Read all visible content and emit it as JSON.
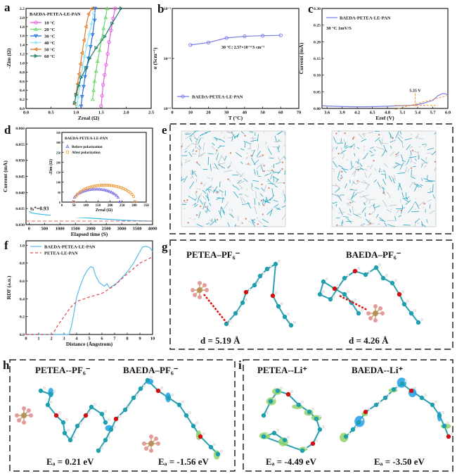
{
  "panels": {
    "a": "a",
    "b": "b",
    "c": "c",
    "d": "d",
    "e": "e",
    "f": "f",
    "g": "g",
    "h": "h",
    "i": "i"
  },
  "panel_g": {
    "left_title": "PETEA–PF₆⁻",
    "right_title": "BAEDA–PF₆⁻",
    "left_distance": "d = 5.19 Å",
    "right_distance": "d = 4.26 Å"
  },
  "panel_h": {
    "left_title": "PETEA--PF₆⁻",
    "right_title": "BAEDA–PF₆⁻",
    "left_energy": "Eₐ = 0.21 eV",
    "right_energy": "Eₐ = -1.56 eV"
  },
  "panel_i": {
    "left_title": "PETEA--Li⁺",
    "right_title": "BAEDA--Li⁺",
    "left_energy": "Eₐ = -4.49 eV",
    "right_energy": "Eₐ = -3.50 eV"
  },
  "colors": {
    "cyan": "#1aa3b8",
    "green": "#86d36a",
    "blue": "#1e8fe0",
    "oxygen": "#d01010",
    "phos": "#b8915a",
    "fluor": "#e59a9a"
  },
  "chart_data": [
    {
      "panel": "a",
      "type": "line",
      "xlabel": "Zreal (Ω)",
      "ylabel": "-Zim (Ω)",
      "xlim": [
        0,
        2.5
      ],
      "ylim": [
        0,
        2.2
      ],
      "xticks": [
        "0.0",
        "0.5",
        "1.0",
        "1.5",
        "2.0",
        "2.5"
      ],
      "yticks": [
        "0.0",
        "0.2",
        "0.4",
        "0.6",
        "0.8",
        "1.0",
        "1.2",
        "1.4",
        "1.6",
        "1.8",
        "2.0",
        "2.2"
      ],
      "legend_title": "BAEDA-PETEA-LE-PAN",
      "series": [
        {
          "name": "10 °C",
          "color": "#e060e0",
          "marker": "circle",
          "x": [
            1.5,
            1.52,
            1.54,
            1.57,
            1.6,
            1.63,
            1.66,
            1.7,
            1.74,
            1.78
          ],
          "y": [
            0.05,
            0.28,
            0.52,
            0.74,
            0.96,
            1.2,
            1.46,
            1.72,
            1.98,
            2.2
          ]
        },
        {
          "name": "20 °C",
          "color": "#6cd66c",
          "marker": "triangle",
          "x": [
            1.33,
            1.35,
            1.37,
            1.4,
            1.43,
            1.47,
            1.51,
            1.55,
            1.59,
            1.62
          ],
          "y": [
            0.2,
            0.4,
            0.6,
            0.82,
            1.04,
            1.28,
            1.52,
            1.76,
            2.0,
            2.2
          ]
        },
        {
          "name": "30 °C",
          "color": "#1e6fe0",
          "marker": "tri-down",
          "x": [
            1.1,
            1.12,
            1.15,
            1.18,
            1.21,
            1.25,
            1.29,
            1.33,
            1.37,
            1.38
          ],
          "y": [
            0.05,
            0.26,
            0.48,
            0.7,
            0.9,
            1.1,
            1.36,
            1.62,
            1.94,
            2.2
          ]
        },
        {
          "name": "40 °C",
          "color": "#8fe6f0",
          "marker": "diamond",
          "x": [
            1.02,
            1.04,
            1.07,
            1.1,
            1.13,
            1.17,
            1.21,
            1.26,
            1.31,
            1.35
          ],
          "y": [
            0.05,
            0.25,
            0.48,
            0.7,
            0.92,
            1.14,
            1.38,
            1.62,
            1.86,
            2.1
          ]
        },
        {
          "name": "50 °C",
          "color": "#e47a2a",
          "marker": "tri-left",
          "x": [
            0.97,
            1.0,
            1.03,
            1.06,
            1.09,
            1.12,
            1.16,
            1.2,
            1.25,
            1.32
          ],
          "y": [
            0.1,
            0.32,
            0.54,
            0.76,
            0.98,
            1.22,
            1.5,
            1.8,
            2.08,
            2.2
          ]
        },
        {
          "name": "60 °C",
          "color": "#1f7a6a",
          "marker": "tri-right",
          "x": [
            0.97,
            1.0,
            1.05,
            1.1,
            1.2,
            1.27,
            1.4,
            1.57,
            1.72,
            1.9
          ],
          "y": [
            0.12,
            0.3,
            0.5,
            0.68,
            0.88,
            1.1,
            1.33,
            1.58,
            1.87,
            2.2
          ]
        }
      ]
    },
    {
      "panel": "b",
      "type": "line",
      "xlabel": "T (°C)",
      "ylabel": "σ (Scm⁻¹)",
      "xlim": [
        0,
        70
      ],
      "ylim": [
        1e-05,
        0.001
      ],
      "yscale": "log",
      "xticks": [
        "0",
        "10",
        "20",
        "30",
        "40",
        "50",
        "60",
        "70"
      ],
      "yticks": [
        "10⁻⁵",
        "10⁻⁴",
        "10⁻³"
      ],
      "annotation": "30 °C: 2.57×10⁻⁴ S cm⁻¹",
      "series": [
        {
          "name": "BAEDA-PETEA-LE-PAN",
          "color": "#7b7be8",
          "marker": "circle",
          "x": [
            10,
            20,
            30,
            40,
            50,
            60
          ],
          "y": [
            0.000186,
            0.000208,
            0.000257,
            0.000277,
            0.000285,
            0.00029
          ]
        }
      ]
    },
    {
      "panel": "c",
      "type": "line",
      "xlabel": "Eref (V)",
      "ylabel": "Current (mA)",
      "xlim": [
        3.5,
        6.0
      ],
      "ylim": [
        0,
        0.3
      ],
      "xticks": [
        "3.6",
        "3.9",
        "4.2",
        "4.5",
        "4.8",
        "5.1",
        "5.4",
        "5.7",
        "6.0"
      ],
      "yticks": [
        "0.00",
        "0.05",
        "0.10",
        "0.15",
        "0.20",
        "0.25",
        "0.30"
      ],
      "conditions": "30 °C  1mV/S",
      "annotation": "5.35 V",
      "series": [
        {
          "name": "BAEDA-PETEA-LE-PAN",
          "color": "#7b7be8",
          "x": [
            3.5,
            3.8,
            4.1,
            4.4,
            4.7,
            5.0,
            5.2,
            5.35,
            5.5,
            5.7,
            5.8,
            5.9,
            5.97,
            6.0
          ],
          "y": [
            0.008,
            0.006,
            0.005,
            0.005,
            0.006,
            0.008,
            0.009,
            0.01,
            0.015,
            0.024,
            0.038,
            0.045,
            0.043,
            0.04
          ]
        }
      ]
    },
    {
      "panel": "d",
      "type": "line",
      "xlabel": "Elapsed time (S)",
      "ylabel": "Current (mA)",
      "xlim": [
        -100,
        4000
      ],
      "ylim": [
        0.03,
        0.06
      ],
      "xticks": [
        "0",
        "500",
        "1000",
        "1500",
        "2000",
        "2500",
        "3000",
        "3500",
        "4000"
      ],
      "yticks": [
        "0.030",
        "0.035",
        "0.040",
        "0.045",
        "0.050",
        "0.055",
        "0.060"
      ],
      "annotation": "tₗᵢ⁺=0.93",
      "steady_state": 0.0311,
      "series": [
        {
          "name": "current",
          "color": "#35b8e8",
          "x": [
            0,
            100,
            300,
            600,
            1000,
            1500,
            2000,
            2500,
            3000,
            3500,
            4000
          ],
          "y": [
            0.0341,
            0.0336,
            0.0333,
            0.033,
            0.0327,
            0.0323,
            0.032,
            0.0317,
            0.0314,
            0.0312,
            0.0311
          ]
        }
      ],
      "inset": {
        "legend_title": "BAEDA-PETEA-LE-PAN",
        "xlabel": "Zreal (Ω)",
        "ylabel": "-Zim (Ω)",
        "xlim": [
          0,
          350
        ],
        "ylim": [
          0,
          350
        ],
        "xticks": [
          "0",
          "50",
          "100",
          "150",
          "200",
          "250",
          "300",
          "350"
        ],
        "yticks": [
          "0",
          "50",
          "100",
          "150",
          "200",
          "250",
          "300",
          "350"
        ],
        "series": [
          {
            "name": "Before polarization",
            "color": "#7b6be8",
            "marker": "triangle",
            "start": 45,
            "end": 240,
            "peak": 65
          },
          {
            "name": "After polarization",
            "color": "#f0a040",
            "marker": "circle",
            "start": 50,
            "end": 305,
            "peak": 85
          }
        ]
      }
    },
    {
      "panel": "f",
      "type": "line",
      "xlabel": "Distance (Ångstrom)",
      "ylabel": "RDF (a.u.)",
      "xlim": [
        0,
        10
      ],
      "ylim": [
        0,
        1.05
      ],
      "xticks": [
        "0",
        "1",
        "2",
        "3",
        "4",
        "5",
        "6",
        "7",
        "8",
        "9",
        "10"
      ],
      "yticks": [
        "0.0",
        "0.2",
        "0.4",
        "0.6",
        "0.8",
        "1.0"
      ],
      "series": [
        {
          "name": "BAEDA-PETEA-LE-PAN",
          "color": "#55bde8",
          "dash": false,
          "x": [
            0,
            3.4,
            3.6,
            3.8,
            4.0,
            4.3,
            4.6,
            4.9,
            5.1,
            5.3,
            5.5,
            5.8,
            6.2,
            6.4,
            6.6,
            6.9,
            7.2,
            7.6,
            8.0,
            8.5,
            8.8,
            9.2,
            9.5,
            9.8,
            10
          ],
          "y": [
            0,
            0,
            0.1,
            0.25,
            0.42,
            0.55,
            0.66,
            0.73,
            0.76,
            0.75,
            0.66,
            0.58,
            0.54,
            0.57,
            0.52,
            0.55,
            0.58,
            0.64,
            0.7,
            0.8,
            0.88,
            0.98,
            0.99,
            0.97,
            0.93
          ]
        },
        {
          "name": "PETEA-LE-PAN",
          "color": "#e04848",
          "dash": true,
          "x": [
            0,
            2.1,
            2.5,
            3.0,
            3.5,
            4.0,
            5.0,
            6.0,
            7.0,
            8.0,
            9.0,
            10
          ],
          "y": [
            0,
            0,
            0.1,
            0.2,
            0.3,
            0.37,
            0.42,
            0.46,
            0.55,
            0.68,
            0.8,
            0.87
          ]
        }
      ]
    }
  ]
}
